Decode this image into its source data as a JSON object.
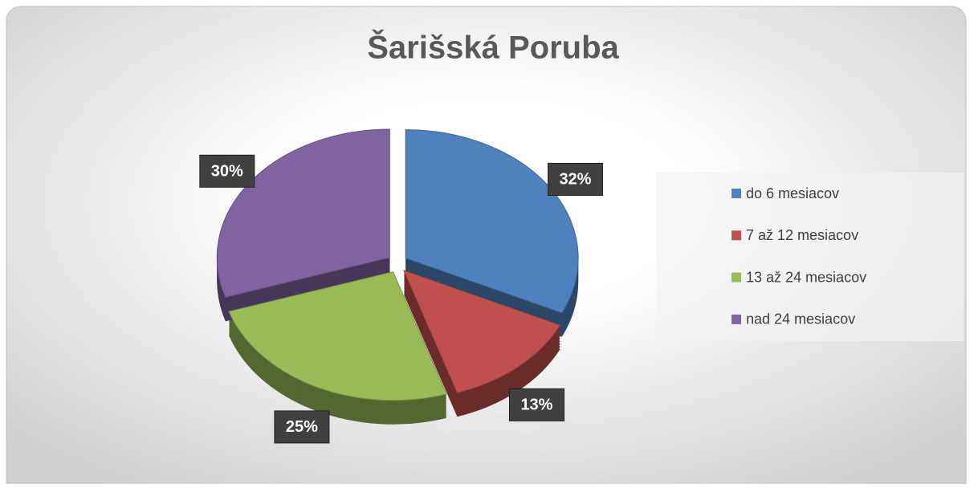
{
  "chart_data": {
    "type": "pie",
    "title": "Šarišská Poruba",
    "categories": [
      "do 6 mesiacov",
      "7 až 12 mesiacov",
      "13 až 24 mesiacov",
      "nad 24 mesiacov"
    ],
    "values": [
      32,
      13,
      25,
      30
    ],
    "value_labels": [
      "32%",
      "13%",
      "25%",
      "30%"
    ],
    "colors": [
      "#4f81bd",
      "#c0504d",
      "#9bbb59",
      "#8064a2"
    ],
    "legend": "right"
  }
}
